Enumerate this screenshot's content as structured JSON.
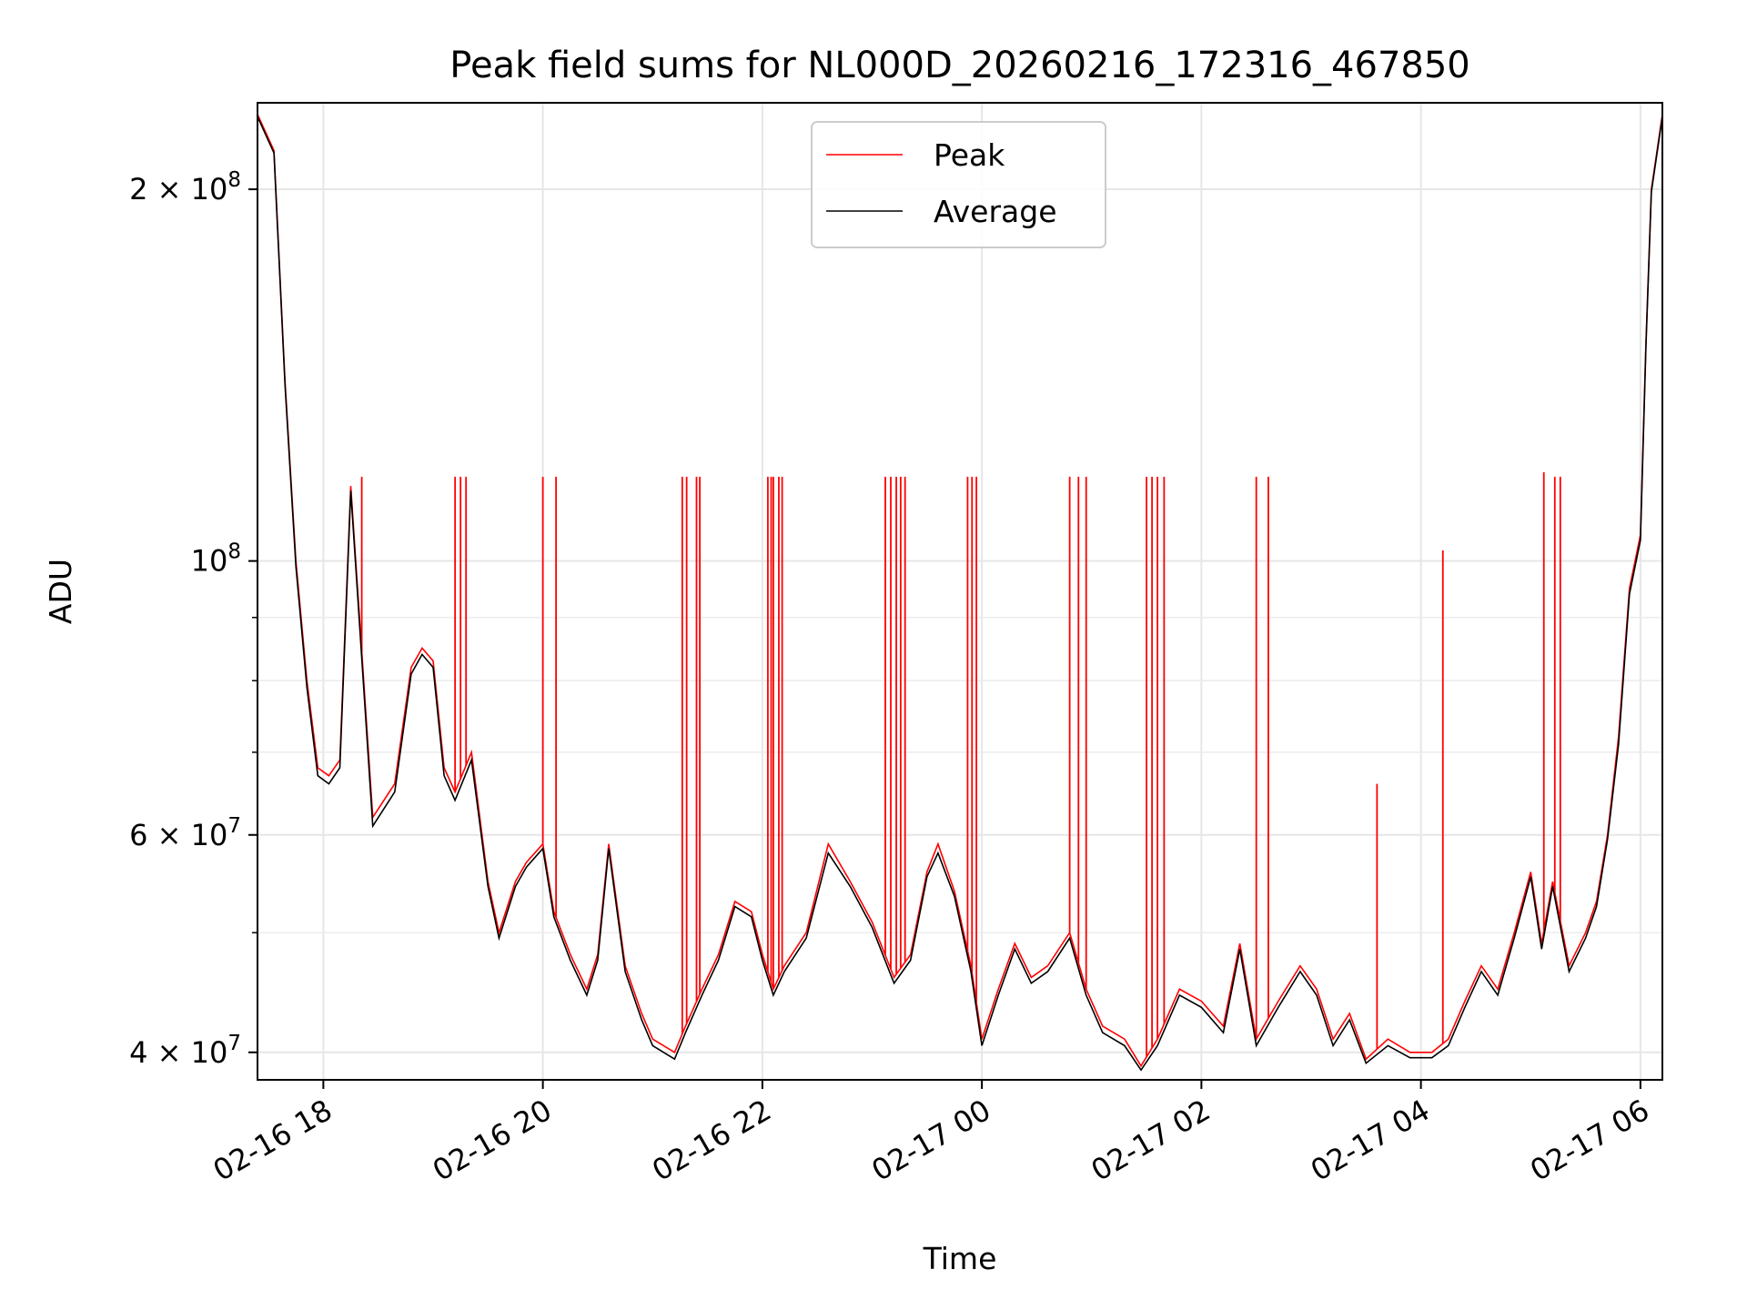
{
  "chart_data": {
    "type": "line",
    "title": "Peak field sums for NL000D_20260216_172316_467850",
    "xlabel": "Time",
    "ylabel": "ADU",
    "yscale": "log",
    "ylim": [
      38000000,
      235000000
    ],
    "xlim_hours": [
      17.4,
      30.2
    ],
    "grid": true,
    "legend_position": "top-center",
    "x_ticks": [
      {
        "hours": 18,
        "label": "02-16 18"
      },
      {
        "hours": 20,
        "label": "02-16 20"
      },
      {
        "hours": 22,
        "label": "02-16 22"
      },
      {
        "hours": 24,
        "label": "02-17 00"
      },
      {
        "hours": 26,
        "label": "02-17 02"
      },
      {
        "hours": 28,
        "label": "02-17 04"
      },
      {
        "hours": 30,
        "label": "02-17 06"
      }
    ],
    "y_major_ticks": [
      {
        "value": 40000000,
        "base": "4 × 10",
        "exp": "7"
      },
      {
        "value": 60000000,
        "base": "6 × 10",
        "exp": "7"
      },
      {
        "value": 100000000,
        "base": "10",
        "exp": "8"
      },
      {
        "value": 200000000,
        "base": "2 × 10",
        "exp": "8"
      }
    ],
    "y_minor_gridlines": [
      50000000,
      70000000,
      80000000,
      90000000
    ],
    "series": [
      {
        "name": "Peak",
        "color": "#ff0000",
        "hours": [
          17.4,
          17.55,
          17.65,
          17.75,
          17.85,
          17.95,
          18.05,
          18.15,
          18.25,
          18.45,
          18.65,
          18.8,
          18.9,
          19.0,
          19.1,
          19.2,
          19.35,
          19.5,
          19.6,
          19.75,
          19.85,
          20.0,
          20.1,
          20.25,
          20.4,
          20.5,
          20.6,
          20.75,
          20.9,
          21.0,
          21.2,
          21.3,
          21.45,
          21.6,
          21.75,
          21.9,
          22.0,
          22.1,
          22.2,
          22.4,
          22.6,
          22.8,
          23.0,
          23.2,
          23.35,
          23.5,
          23.6,
          23.75,
          23.9,
          24.0,
          24.15,
          24.3,
          24.45,
          24.6,
          24.8,
          24.95,
          25.1,
          25.3,
          25.45,
          25.6,
          25.8,
          26.0,
          26.2,
          26.35,
          26.5,
          26.7,
          26.9,
          27.05,
          27.2,
          27.35,
          27.5,
          27.7,
          27.9,
          28.1,
          28.25,
          28.4,
          28.55,
          28.7,
          28.85,
          29.0,
          29.1,
          29.2,
          29.35,
          29.5,
          29.6,
          29.7,
          29.8,
          29.9,
          30.0,
          30.05,
          30.1,
          30.2
        ],
        "values": [
          230000000,
          215000000,
          140000000,
          100000000,
          80000000,
          68000000,
          67000000,
          69000000,
          115000000,
          62000000,
          66000000,
          82000000,
          85000000,
          83000000,
          68000000,
          65000000,
          70000000,
          55000000,
          50000000,
          55000000,
          57000000,
          59000000,
          52000000,
          48000000,
          45000000,
          48000000,
          59000000,
          47000000,
          43000000,
          41000000,
          40000000,
          42000000,
          45000000,
          48000000,
          53000000,
          52000000,
          48000000,
          45000000,
          47000000,
          50000000,
          59000000,
          55000000,
          51000000,
          46000000,
          48000000,
          56000000,
          59000000,
          54000000,
          47000000,
          41000000,
          45000000,
          49000000,
          46000000,
          47000000,
          50000000,
          45000000,
          42000000,
          41000000,
          39000000,
          41000000,
          45000000,
          44000000,
          42000000,
          49000000,
          41000000,
          44000000,
          47000000,
          45000000,
          41000000,
          43000000,
          39500000,
          41000000,
          40000000,
          40000000,
          41000000,
          44000000,
          47000000,
          45000000,
          50000000,
          56000000,
          49000000,
          55000000,
          47000000,
          50000000,
          53000000,
          60000000,
          72000000,
          95000000,
          105000000,
          150000000,
          200000000,
          230000000
        ]
      },
      {
        "name": "Average",
        "color": "#000000",
        "hours": [
          17.4,
          17.55,
          17.65,
          17.75,
          17.85,
          17.95,
          18.05,
          18.15,
          18.25,
          18.45,
          18.65,
          18.8,
          18.9,
          19.0,
          19.1,
          19.2,
          19.35,
          19.5,
          19.6,
          19.75,
          19.85,
          20.0,
          20.1,
          20.25,
          20.4,
          20.5,
          20.6,
          20.75,
          20.9,
          21.0,
          21.2,
          21.3,
          21.45,
          21.6,
          21.75,
          21.9,
          22.0,
          22.1,
          22.2,
          22.4,
          22.6,
          22.8,
          23.0,
          23.2,
          23.35,
          23.5,
          23.6,
          23.75,
          23.9,
          24.0,
          24.15,
          24.3,
          24.45,
          24.6,
          24.8,
          24.95,
          25.1,
          25.3,
          25.45,
          25.6,
          25.8,
          26.0,
          26.2,
          26.35,
          26.5,
          26.7,
          26.9,
          27.05,
          27.2,
          27.35,
          27.5,
          27.7,
          27.9,
          28.1,
          28.25,
          28.4,
          28.55,
          28.7,
          28.85,
          29.0,
          29.1,
          29.2,
          29.35,
          29.5,
          29.6,
          29.7,
          29.8,
          29.9,
          30.0,
          30.05,
          30.1,
          30.2
        ],
        "values": [
          229000000,
          214000000,
          139000000,
          99000000,
          79000000,
          67000000,
          66000000,
          68000000,
          114000000,
          61000000,
          65000000,
          81000000,
          84000000,
          82000000,
          67000000,
          64000000,
          69000000,
          54500000,
          49500000,
          54500000,
          56500000,
          58500000,
          51500000,
          47500000,
          44500000,
          47500000,
          58500000,
          46500000,
          42500000,
          40500000,
          39500000,
          41500000,
          44500000,
          47500000,
          52500000,
          51500000,
          47500000,
          44500000,
          46500000,
          49500000,
          58000000,
          54500000,
          50500000,
          45500000,
          47500000,
          55500000,
          58000000,
          53500000,
          46500000,
          40500000,
          44500000,
          48500000,
          45500000,
          46500000,
          49500000,
          44500000,
          41500000,
          40500000,
          38700000,
          40500000,
          44500000,
          43500000,
          41500000,
          48500000,
          40500000,
          43500000,
          46500000,
          44500000,
          40500000,
          42500000,
          39200000,
          40500000,
          39600000,
          39600000,
          40500000,
          43500000,
          46500000,
          44500000,
          49500000,
          55500000,
          48500000,
          54500000,
          46500000,
          49500000,
          52500000,
          59500000,
          71000000,
          94000000,
          104000000,
          149000000,
          199000000,
          229000000
        ]
      }
    ],
    "peak_spikes": [
      {
        "hours": 18.35,
        "value": 117000000
      },
      {
        "hours": 19.2,
        "value": 117000000
      },
      {
        "hours": 19.25,
        "value": 117000000
      },
      {
        "hours": 19.3,
        "value": 117000000
      },
      {
        "hours": 20.0,
        "value": 117000000
      },
      {
        "hours": 20.12,
        "value": 117000000
      },
      {
        "hours": 21.27,
        "value": 117000000
      },
      {
        "hours": 21.31,
        "value": 117000000
      },
      {
        "hours": 21.4,
        "value": 117000000
      },
      {
        "hours": 21.43,
        "value": 117000000
      },
      {
        "hours": 22.05,
        "value": 117000000
      },
      {
        "hours": 22.08,
        "value": 117000000
      },
      {
        "hours": 22.1,
        "value": 117000000
      },
      {
        "hours": 22.15,
        "value": 117000000
      },
      {
        "hours": 22.18,
        "value": 117000000
      },
      {
        "hours": 23.12,
        "value": 117000000
      },
      {
        "hours": 23.17,
        "value": 117000000
      },
      {
        "hours": 23.22,
        "value": 117000000
      },
      {
        "hours": 23.26,
        "value": 117000000
      },
      {
        "hours": 23.3,
        "value": 117000000
      },
      {
        "hours": 23.87,
        "value": 117000000
      },
      {
        "hours": 23.91,
        "value": 117000000
      },
      {
        "hours": 23.95,
        "value": 117000000
      },
      {
        "hours": 24.8,
        "value": 117000000
      },
      {
        "hours": 24.88,
        "value": 117000000
      },
      {
        "hours": 24.95,
        "value": 117000000
      },
      {
        "hours": 25.5,
        "value": 117000000
      },
      {
        "hours": 25.55,
        "value": 117000000
      },
      {
        "hours": 25.6,
        "value": 117000000
      },
      {
        "hours": 25.66,
        "value": 117000000
      },
      {
        "hours": 26.5,
        "value": 117000000
      },
      {
        "hours": 26.61,
        "value": 117000000
      },
      {
        "hours": 27.6,
        "value": 66000000
      },
      {
        "hours": 28.2,
        "value": 102000000
      },
      {
        "hours": 29.12,
        "value": 118000000
      },
      {
        "hours": 29.22,
        "value": 117000000
      },
      {
        "hours": 29.27,
        "value": 117000000
      }
    ]
  }
}
